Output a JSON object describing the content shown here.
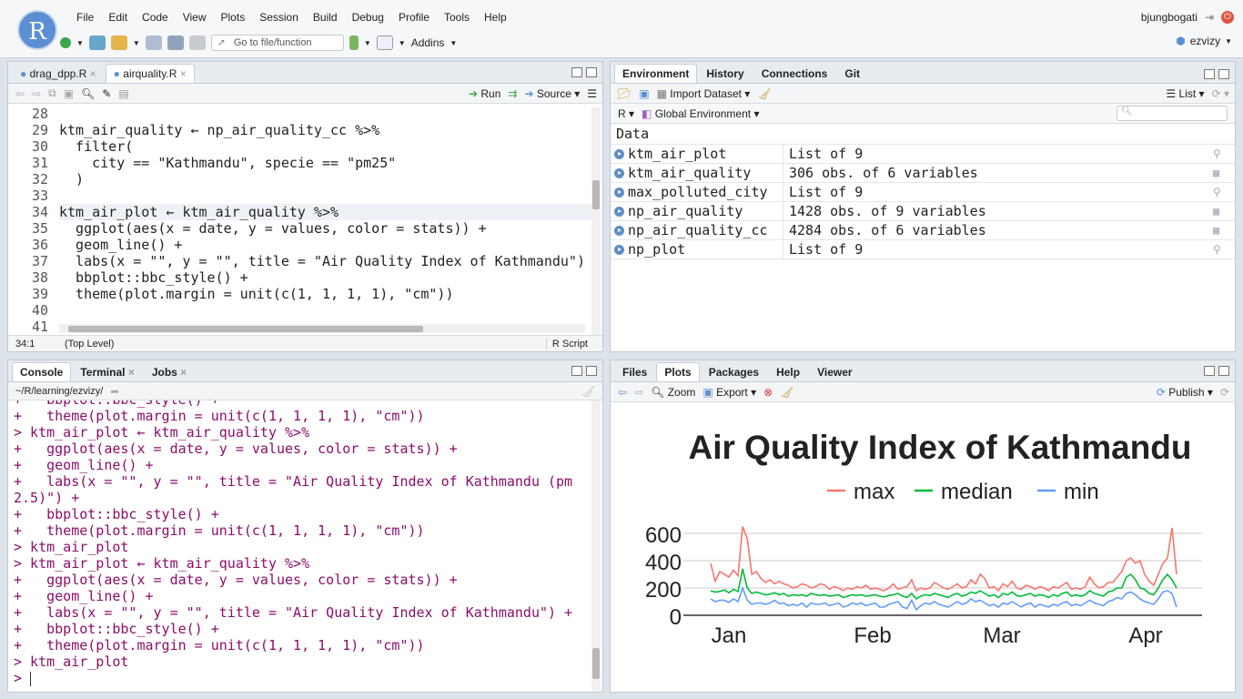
{
  "app": {
    "logo": "R",
    "menus": [
      "File",
      "Edit",
      "Code",
      "View",
      "Plots",
      "Session",
      "Build",
      "Debug",
      "Profile",
      "Tools",
      "Help"
    ],
    "user": "bjungbogati",
    "project": "ezvizy",
    "goto_placeholder": "Go to file/function",
    "addins": "Addins"
  },
  "editor": {
    "tabs": [
      "drag_dpp.R",
      "airquality.R"
    ],
    "toolbar": {
      "run": "Run",
      "source": "Source"
    },
    "lines": [
      {
        "n": "28",
        "t": ""
      },
      {
        "n": "29",
        "t": "ktm_air_quality ← np_air_quality_cc %>%"
      },
      {
        "n": "30",
        "t": "  filter("
      },
      {
        "n": "31",
        "t": "    city == \"Kathmandu\", specie == \"pm25\""
      },
      {
        "n": "32",
        "t": "  )"
      },
      {
        "n": "33",
        "t": ""
      },
      {
        "n": "34",
        "t": "ktm_air_plot ← ktm_air_quality %>%"
      },
      {
        "n": "35",
        "t": "  ggplot(aes(x = date, y = values, color = stats)) +"
      },
      {
        "n": "36",
        "t": "  geom_line() +"
      },
      {
        "n": "37",
        "t": "  labs(x = \"\", y = \"\", title = \"Air Quality Index of Kathmandu\")"
      },
      {
        "n": "38",
        "t": "  bbplot::bbc_style() +"
      },
      {
        "n": "39",
        "t": "  theme(plot.margin = unit(c(1, 1, 1, 1), \"cm\"))"
      },
      {
        "n": "40",
        "t": ""
      },
      {
        "n": "41",
        "t": ""
      }
    ],
    "status": {
      "position": "34:1",
      "scope": "(Top Level)",
      "filetype": "R Script"
    }
  },
  "console": {
    "tabs": [
      "Console",
      "Terminal",
      "Jobs"
    ],
    "path": "~/R/learning/ezvizy/",
    "lines": [
      "+   bbplot::bbc_style() +",
      "+   theme(plot.margin = unit(c(1, 1, 1, 1), \"cm\"))",
      "> ktm_air_plot ← ktm_air_quality %>%",
      "+   ggplot(aes(x = date, y = values, color = stats)) +",
      "+   geom_line() +",
      "+   labs(x = \"\", y = \"\", title = \"Air Quality Index of Kathmandu (pm",
      "2.5)\") +",
      "+   bbplot::bbc_style() +",
      "+   theme(plot.margin = unit(c(1, 1, 1, 1), \"cm\"))",
      "> ktm_air_plot",
      "> ktm_air_plot ← ktm_air_quality %>%",
      "+   ggplot(aes(x = date, y = values, color = stats)) +",
      "+   geom_line() +",
      "+   labs(x = \"\", y = \"\", title = \"Air Quality Index of Kathmandu\") +",
      "+   bbplot::bbc_style() +",
      "+   theme(plot.margin = unit(c(1, 1, 1, 1), \"cm\"))",
      "> ktm_air_plot",
      "> "
    ]
  },
  "environment": {
    "tabs": [
      "Environment",
      "History",
      "Connections",
      "Git"
    ],
    "import_label": "Import Dataset",
    "list_label": "List",
    "lang": "R",
    "scope": "Global Environment",
    "section": "Data",
    "rows": [
      {
        "name": "ktm_air_plot",
        "value": "List of  9"
      },
      {
        "name": "ktm_air_quality",
        "value": "306 obs. of 6 variables"
      },
      {
        "name": "max_polluted_city",
        "value": "List of  9"
      },
      {
        "name": "np_air_quality",
        "value": "1428 obs. of 9 variables"
      },
      {
        "name": "np_air_quality_cc",
        "value": "4284 obs. of 6 variables"
      },
      {
        "name": "np_plot",
        "value": "List of  9"
      }
    ]
  },
  "plots_pane": {
    "tabs": [
      "Files",
      "Plots",
      "Packages",
      "Help",
      "Viewer"
    ],
    "zoom": "Zoom",
    "export": "Export",
    "publish": "Publish"
  },
  "chart_data": {
    "type": "line",
    "title": "Air Quality Index of Kathmandu",
    "xlabel": "",
    "ylabel": "",
    "x_ticks": [
      "Jan",
      "Feb",
      "Mar",
      "Apr"
    ],
    "y_ticks": [
      "0",
      "200",
      "400",
      "600"
    ],
    "ylim": [
      0,
      700
    ],
    "legend": "top",
    "series": [
      {
        "name": "max",
        "color": "#f8766d",
        "values": [
          380,
          250,
          320,
          300,
          280,
          330,
          290,
          650,
          560,
          300,
          320,
          270,
          240,
          260,
          230,
          250,
          230,
          220,
          200,
          210,
          230,
          220,
          200,
          210,
          230,
          220,
          190,
          210,
          200,
          180,
          200,
          190,
          210,
          200,
          220,
          190,
          200,
          190,
          180,
          200,
          230,
          190,
          200,
          210,
          260,
          180,
          200,
          190,
          200,
          240,
          220,
          200,
          190,
          210,
          230,
          200,
          210,
          260,
          230,
          300,
          270,
          200,
          210,
          180,
          230,
          210,
          250,
          200,
          190,
          220,
          210,
          190,
          210,
          200,
          180,
          210,
          200,
          220,
          240,
          190,
          200,
          190,
          210,
          280,
          230,
          200,
          210,
          240,
          240,
          280,
          320,
          400,
          420,
          380,
          400,
          300,
          250,
          220,
          300,
          380,
          420,
          640,
          300
        ]
      },
      {
        "name": "median",
        "color": "#00ba38",
        "values": [
          180,
          170,
          175,
          185,
          165,
          190,
          175,
          340,
          200,
          160,
          170,
          160,
          150,
          155,
          165,
          150,
          160,
          140,
          150,
          145,
          150,
          140,
          160,
          150,
          145,
          150,
          140,
          145,
          150,
          130,
          140,
          150,
          145,
          150,
          140,
          145,
          150,
          140,
          135,
          145,
          150,
          160,
          140,
          130,
          160,
          120,
          140,
          150,
          145,
          160,
          150,
          140,
          130,
          150,
          160,
          140,
          150,
          170,
          160,
          180,
          160,
          140,
          150,
          130,
          160,
          150,
          170,
          145,
          140,
          150,
          160,
          140,
          150,
          145,
          130,
          150,
          140,
          160,
          170,
          140,
          150,
          140,
          150,
          180,
          160,
          150,
          140,
          170,
          180,
          200,
          200,
          280,
          300,
          260,
          200,
          190,
          160,
          150,
          200,
          260,
          300,
          260,
          200
        ]
      },
      {
        "name": "min",
        "color": "#619cff",
        "values": [
          120,
          100,
          110,
          110,
          95,
          120,
          100,
          200,
          110,
          80,
          90,
          90,
          80,
          90,
          110,
          85,
          90,
          70,
          80,
          70,
          90,
          60,
          90,
          80,
          80,
          90,
          70,
          80,
          90,
          60,
          70,
          90,
          80,
          90,
          70,
          80,
          90,
          60,
          60,
          80,
          90,
          100,
          60,
          50,
          110,
          40,
          70,
          90,
          80,
          100,
          80,
          70,
          60,
          80,
          100,
          80,
          90,
          120,
          100,
          110,
          90,
          70,
          80,
          60,
          90,
          80,
          100,
          80,
          60,
          80,
          90,
          60,
          80,
          70,
          60,
          80,
          70,
          90,
          100,
          70,
          80,
          70,
          90,
          110,
          90,
          80,
          70,
          100,
          110,
          130,
          120,
          160,
          170,
          150,
          120,
          100,
          90,
          80,
          120,
          170,
          180,
          160,
          60
        ]
      }
    ]
  },
  "colors": {
    "accent": "#5b8fd1",
    "console_text": "#8b0d6b",
    "string": "#036a07",
    "keyword": "#1a1aa6"
  }
}
